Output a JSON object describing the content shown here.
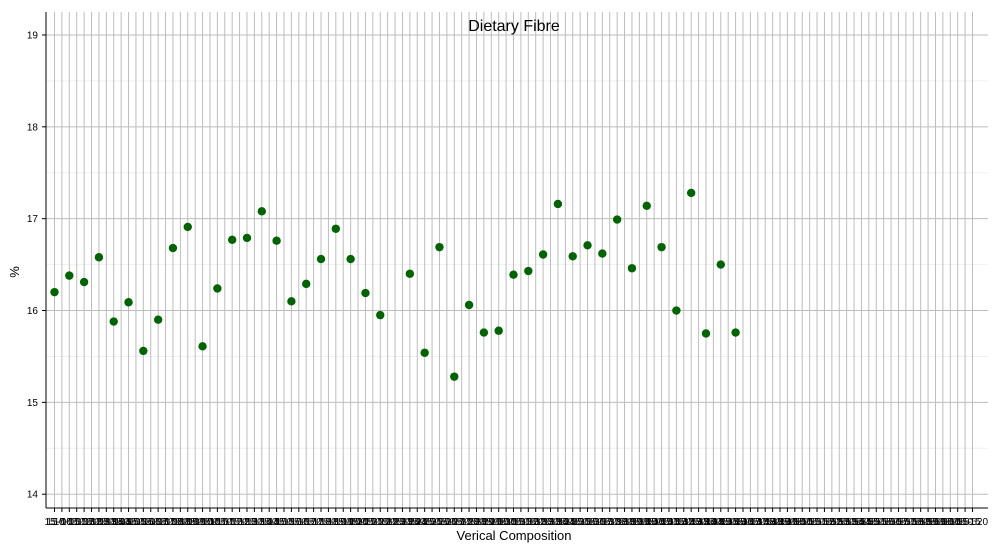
{
  "chart_data": {
    "type": "scatter",
    "title": "Dietary Fibre",
    "xlabel": "Verical Composition",
    "ylabel": "%",
    "ylim": [
      13.85,
      19.25
    ],
    "yticks": [
      14,
      15,
      16,
      17,
      18,
      19
    ],
    "grid": true,
    "point_color": "#006400",
    "categories": [
      "15-0",
      "15-005",
      "15-010",
      "15-015",
      "15-020",
      "15-025",
      "15-030",
      "15-035",
      "15-040",
      "15-045",
      "15-050",
      "15-055",
      "15-060",
      "15-065",
      "15-070",
      "15-075",
      "15-080",
      "15-085",
      "15-090",
      "15-095",
      "15-100",
      "15-105",
      "15-110",
      "15-115",
      "15-120",
      "15-125",
      "15-130",
      "15-135",
      "15-140",
      "15-145",
      "15-150",
      "15-155",
      "15-160",
      "15-165",
      "15-170",
      "15-175",
      "15-180",
      "15-185",
      "15-190",
      "15-195",
      "15-200",
      "15-205",
      "15-210",
      "15-215",
      "15-220",
      "15-225",
      "15-230",
      "15-235",
      "15-240",
      "15-245",
      "15-250",
      "15-255",
      "15-260",
      "15-265",
      "15-270",
      "15-275",
      "15-280",
      "15-285",
      "15-290",
      "15-295",
      "15-300",
      "15-305",
      "15-310",
      "15-315",
      "15-320",
      "15-325",
      "15-330",
      "15-335",
      "15-340",
      "15-345",
      "15-350",
      "15-355",
      "15-360",
      "15-365",
      "15-370",
      "15-375",
      "15-380",
      "15-385",
      "15-390",
      "15-395",
      "15-400",
      "15-405",
      "15-410",
      "15-415",
      "15-420",
      "15-425",
      "15-430",
      "15-435",
      "15-440",
      "15-445",
      "15-450",
      "15-455",
      "15-460",
      "15-465",
      "15-470",
      "15-475",
      "15-480",
      "15-485",
      "15-490",
      "15-495",
      "15-500",
      "15-505",
      "15-510",
      "15-515",
      "15-520",
      "15-525",
      "15-530",
      "15-535",
      "15-540",
      "15-545",
      "15-550",
      "15-555",
      "15-560",
      "15-565",
      "15-570",
      "15-575",
      "15-580",
      "15-585",
      "15-590",
      "15-595",
      "15-600",
      "15-605",
      "15-610",
      "15-615",
      "15-620"
    ],
    "points": [
      {
        "x": "15-0",
        "y": 16.2
      },
      {
        "x": "15-010",
        "y": 16.38
      },
      {
        "x": "15-020",
        "y": 16.31
      },
      {
        "x": "15-030",
        "y": 16.58
      },
      {
        "x": "15-040",
        "y": 15.88
      },
      {
        "x": "15-050",
        "y": 16.09
      },
      {
        "x": "15-060",
        "y": 15.56
      },
      {
        "x": "15-070",
        "y": 15.9
      },
      {
        "x": "15-080",
        "y": 16.68
      },
      {
        "x": "15-090",
        "y": 16.91
      },
      {
        "x": "15-100",
        "y": 15.61
      },
      {
        "x": "15-110",
        "y": 16.24
      },
      {
        "x": "15-120",
        "y": 16.77
      },
      {
        "x": "15-130",
        "y": 16.79
      },
      {
        "x": "15-140",
        "y": 17.08
      },
      {
        "x": "15-150",
        "y": 16.76
      },
      {
        "x": "15-160",
        "y": 16.1
      },
      {
        "x": "15-170",
        "y": 16.29
      },
      {
        "x": "15-180",
        "y": 16.56
      },
      {
        "x": "15-190",
        "y": 16.89
      },
      {
        "x": "15-200",
        "y": 16.56
      },
      {
        "x": "15-210",
        "y": 16.19
      },
      {
        "x": "15-220",
        "y": 15.95
      },
      {
        "x": "15-240",
        "y": 16.4
      },
      {
        "x": "15-250",
        "y": 15.54
      },
      {
        "x": "15-260",
        "y": 16.69
      },
      {
        "x": "15-270",
        "y": 15.28
      },
      {
        "x": "15-280",
        "y": 16.06
      },
      {
        "x": "15-290",
        "y": 15.76
      },
      {
        "x": "15-300",
        "y": 15.78
      },
      {
        "x": "15-310",
        "y": 16.39
      },
      {
        "x": "15-320",
        "y": 16.43
      },
      {
        "x": "15-330",
        "y": 16.61
      },
      {
        "x": "15-340",
        "y": 17.16
      },
      {
        "x": "15-350",
        "y": 16.59
      },
      {
        "x": "15-360",
        "y": 16.71
      },
      {
        "x": "15-370",
        "y": 16.62
      },
      {
        "x": "15-380",
        "y": 16.99
      },
      {
        "x": "15-390",
        "y": 16.46
      },
      {
        "x": "15-400",
        "y": 17.14
      },
      {
        "x": "15-410",
        "y": 16.69
      },
      {
        "x": "15-420",
        "y": 16.0
      },
      {
        "x": "15-430",
        "y": 17.28
      },
      {
        "x": "15-440",
        "y": 15.75
      },
      {
        "x": "15-450",
        "y": 16.5
      },
      {
        "x": "15-460",
        "y": 15.76
      }
    ]
  }
}
